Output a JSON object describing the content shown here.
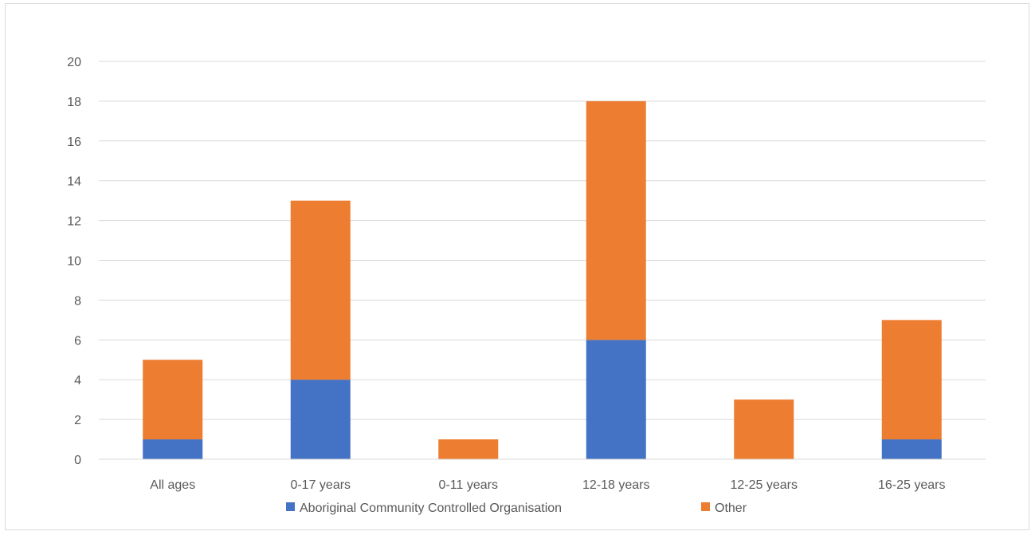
{
  "chart_data": {
    "type": "bar",
    "stacked": true,
    "title": "",
    "xlabel": "",
    "ylabel": "",
    "categories": [
      "All ages",
      "0-17 years",
      "0-11 years",
      "12-18 years",
      "12-25 years",
      "16-25 years"
    ],
    "series": [
      {
        "name": "Aboriginal Community Controlled Organisation",
        "color": "#4472c4",
        "values": [
          1,
          4,
          0,
          6,
          0,
          1
        ]
      },
      {
        "name": "Other",
        "color": "#ed7d31",
        "values": [
          4,
          9,
          1,
          12,
          3,
          6
        ]
      }
    ],
    "ylim": [
      0,
      20
    ],
    "yticks": [
      0,
      2,
      4,
      6,
      8,
      10,
      12,
      14,
      16,
      18,
      20
    ],
    "grid": true,
    "legend_position": "bottom"
  }
}
